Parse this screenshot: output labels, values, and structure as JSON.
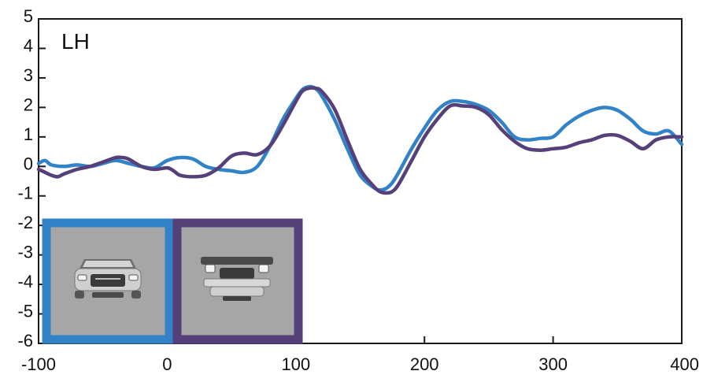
{
  "chart_data": {
    "type": "line",
    "panel_label": "LH",
    "xlim": [
      -100,
      400
    ],
    "ylim": [
      -6,
      5
    ],
    "x_ticks": [
      "-100",
      "0",
      "100",
      "200",
      "300",
      "400"
    ],
    "y_ticks": [
      "5",
      "4",
      "3",
      "2",
      "1",
      "0",
      "-1",
      "-2",
      "-3",
      "-4",
      "-5",
      "-6"
    ],
    "grid": false,
    "colors": {
      "upright": "#3282c8",
      "inverted": "#55407a",
      "inset_bg": "#a6a6a6"
    },
    "inset_icons": [
      "car-front-upright-icon",
      "car-front-inverted-icon"
    ],
    "series": [
      {
        "color": "#3282c8",
        "x": [
          -100,
          -95,
          -90,
          -80,
          -70,
          -60,
          -50,
          -40,
          -30,
          -20,
          -10,
          0,
          10,
          20,
          30,
          40,
          50,
          60,
          70,
          80,
          90,
          100,
          105,
          110,
          115,
          120,
          130,
          140,
          150,
          160,
          165,
          170,
          175,
          180,
          190,
          200,
          210,
          220,
          230,
          240,
          250,
          260,
          270,
          280,
          290,
          300,
          310,
          320,
          330,
          340,
          350,
          360,
          370,
          380,
          390,
          400
        ],
        "y": [
          0.1,
          0.2,
          0.05,
          0.0,
          0.05,
          0.0,
          0.1,
          0.2,
          0.1,
          0.0,
          -0.05,
          0.2,
          0.3,
          0.25,
          0.0,
          -0.1,
          -0.15,
          -0.2,
          0.0,
          0.7,
          1.6,
          2.3,
          2.6,
          2.7,
          2.65,
          2.4,
          1.6,
          0.6,
          -0.3,
          -0.7,
          -0.8,
          -0.75,
          -0.55,
          -0.2,
          0.6,
          1.3,
          1.9,
          2.2,
          2.2,
          2.1,
          1.9,
          1.5,
          1.0,
          0.9,
          0.95,
          1.0,
          1.4,
          1.7,
          1.9,
          2.0,
          1.9,
          1.6,
          1.2,
          1.1,
          1.2,
          0.75
        ]
      },
      {
        "color": "#55407a",
        "x": [
          -100,
          -95,
          -90,
          -85,
          -80,
          -70,
          -60,
          -50,
          -40,
          -35,
          -30,
          -20,
          -10,
          0,
          5,
          10,
          20,
          30,
          40,
          50,
          60,
          70,
          80,
          90,
          100,
          105,
          110,
          115,
          120,
          130,
          140,
          150,
          160,
          165,
          170,
          175,
          180,
          190,
          200,
          210,
          220,
          230,
          240,
          250,
          260,
          270,
          280,
          290,
          300,
          310,
          320,
          330,
          340,
          350,
          360,
          370,
          380,
          390,
          400
        ],
        "y": [
          -0.1,
          -0.2,
          -0.3,
          -0.35,
          -0.25,
          -0.1,
          0.0,
          0.15,
          0.3,
          0.3,
          0.25,
          0.0,
          -0.1,
          -0.05,
          -0.15,
          -0.3,
          -0.35,
          -0.3,
          -0.05,
          0.35,
          0.45,
          0.4,
          0.7,
          1.4,
          2.2,
          2.55,
          2.65,
          2.65,
          2.55,
          1.95,
          0.9,
          -0.1,
          -0.65,
          -0.85,
          -0.9,
          -0.85,
          -0.6,
          0.2,
          1.0,
          1.6,
          2.05,
          2.05,
          2.0,
          1.75,
          1.25,
          0.85,
          0.6,
          0.55,
          0.6,
          0.65,
          0.8,
          0.9,
          1.05,
          1.05,
          0.85,
          0.6,
          0.9,
          1.0,
          1.0
        ]
      }
    ]
  }
}
